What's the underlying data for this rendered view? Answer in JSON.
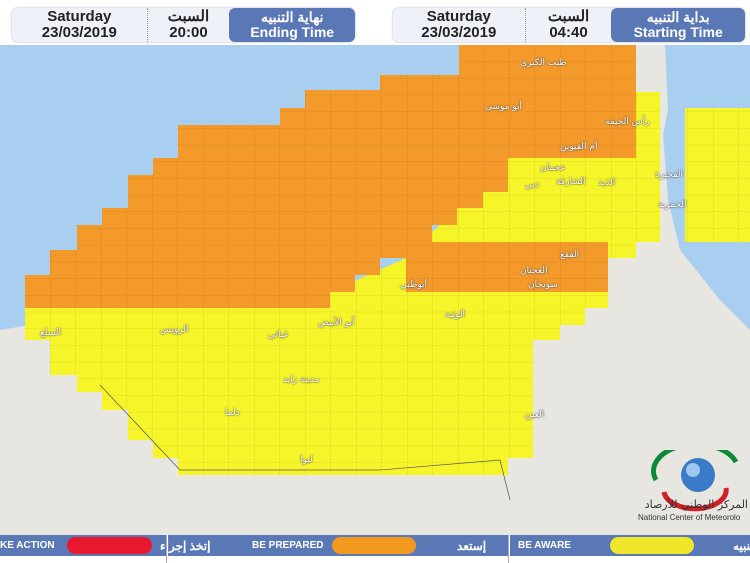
{
  "ending": {
    "day_en": "Saturday",
    "date": "23/03/2019",
    "day_ar": "السبت",
    "time": "20:00",
    "label_ar": "نهاية التنبيه",
    "label_en": "Ending Time"
  },
  "starting": {
    "day_en": "Saturday",
    "date": "23/03/2019",
    "day_ar": "السبت",
    "time": "04:40",
    "label_ar": "بداية التنبيه",
    "label_en": "Starting Time"
  },
  "map": {
    "colors": {
      "sea": "#a8cff0",
      "land": "#e8e6e1",
      "orange": "#f39a2b",
      "yellow": "#f5f52a"
    },
    "cities": [
      "طنب الكبرى",
      "أبو موسى",
      "رأس الخيمة",
      "أم القيوين",
      "عجمان",
      "الشارقة",
      "دبي",
      "الذيد",
      "الفجيرة",
      "الحمرية",
      "أبوظبي",
      "الفقع",
      "العجبان",
      "سويحان",
      "الوثبة",
      "أبو الأبيض",
      "غياثي",
      "الرويس",
      "السلع",
      "مدينة زايد",
      "ليوا",
      "العين",
      "دلما"
    ]
  },
  "legend": [
    {
      "en": "KE ACTION",
      "ar": "إتخذ إجراء",
      "color": "#e8192c"
    },
    {
      "en": "BE PREPARED",
      "ar": "إستعد",
      "color": "#f39a1e"
    },
    {
      "en": "BE AWARE",
      "ar": "تنبيه",
      "color": "#f0e62a"
    }
  ],
  "logo": {
    "ar": "المركز الوطني للأرصاد",
    "en": "National Center of Meteorology"
  }
}
